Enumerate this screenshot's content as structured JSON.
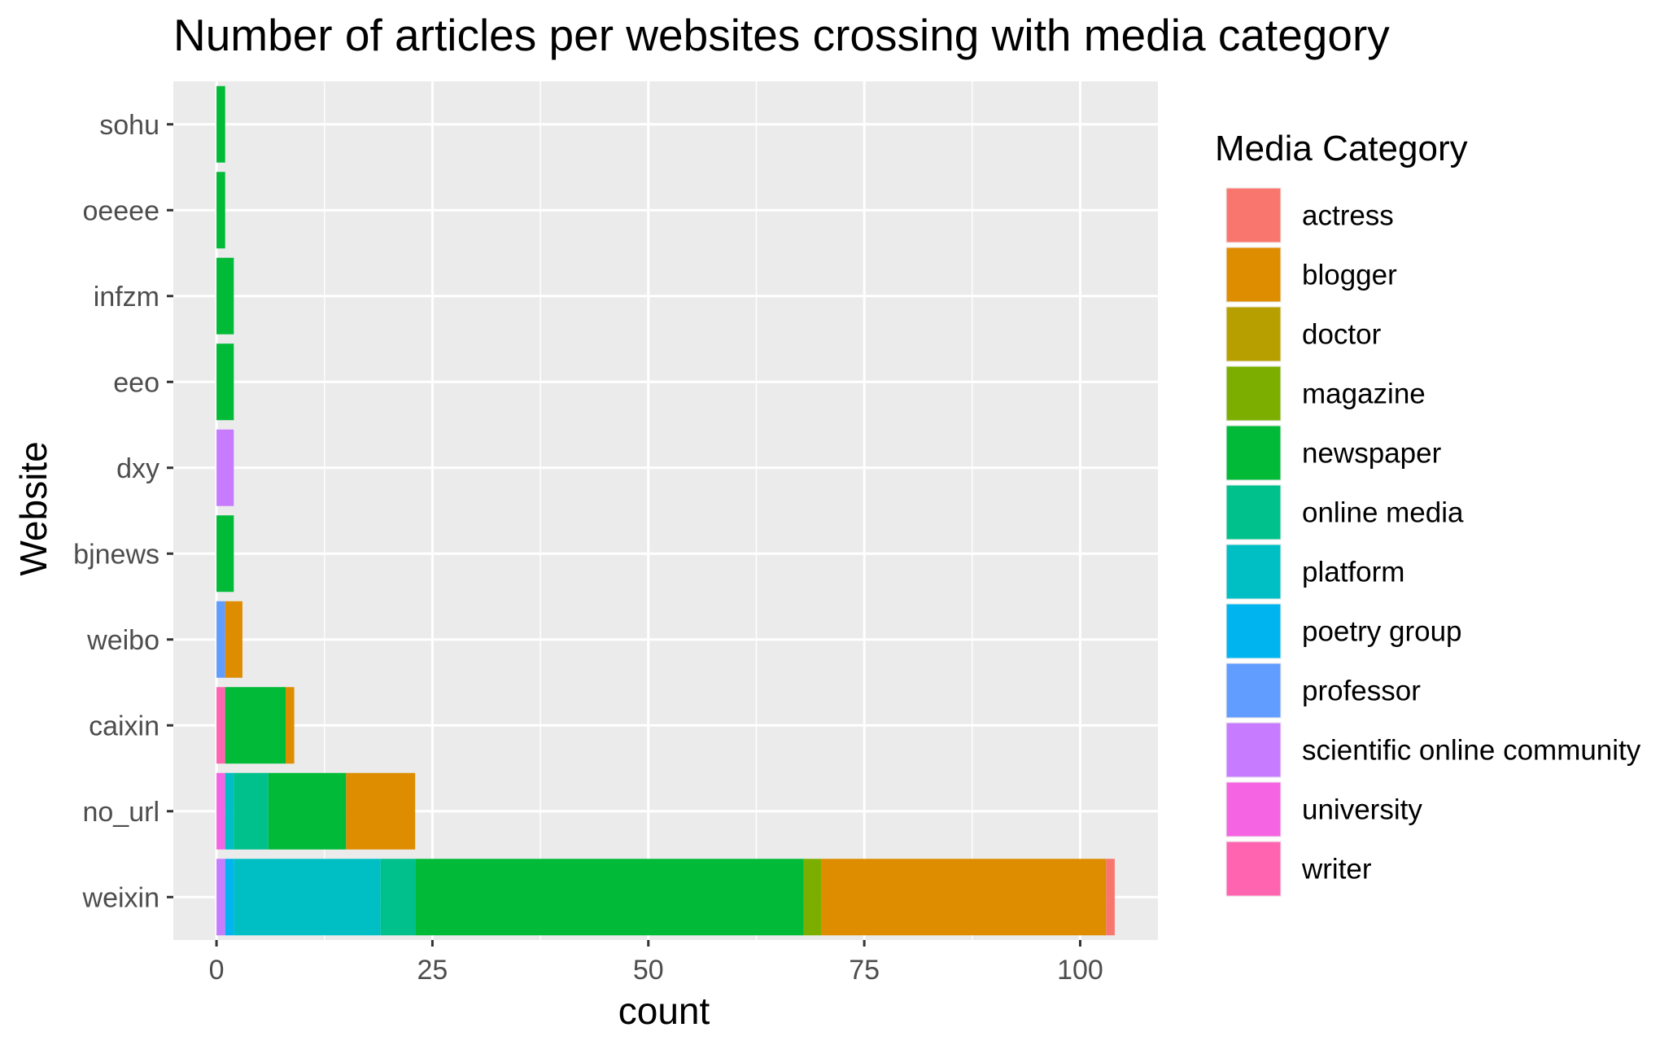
{
  "chart_data": {
    "type": "bar",
    "orientation": "horizontal",
    "stacked": true,
    "title": "Number of articles per websites crossing with media category",
    "xlabel": "count",
    "ylabel": "Website",
    "xlim": [
      -5,
      109
    ],
    "xticks": [
      0,
      25,
      50,
      75,
      100
    ],
    "grid": true,
    "legend_position": "right",
    "legend_title": "Media Category",
    "categories": [
      "sohu",
      "oeeee",
      "infzm",
      "eeo",
      "dxy",
      "bjnews",
      "weibo",
      "caixin",
      "no_url",
      "weixin"
    ],
    "series": [
      {
        "name": "actress",
        "color": "#F8766D",
        "values": [
          0,
          0,
          0,
          0,
          0,
          0,
          0,
          0,
          0,
          1
        ]
      },
      {
        "name": "blogger",
        "color": "#DE8C00",
        "values": [
          0,
          0,
          0,
          0,
          0,
          0,
          2,
          1,
          8,
          33
        ]
      },
      {
        "name": "doctor",
        "color": "#B79F00",
        "values": [
          0,
          0,
          0,
          0,
          0,
          0,
          0,
          0,
          0,
          0
        ]
      },
      {
        "name": "magazine",
        "color": "#7CAE00",
        "values": [
          0,
          0,
          0,
          0,
          0,
          0,
          0,
          0,
          0,
          2
        ]
      },
      {
        "name": "newspaper",
        "color": "#00BA38",
        "values": [
          1,
          1,
          2,
          2,
          0,
          2,
          0,
          7,
          9,
          45
        ]
      },
      {
        "name": "online media",
        "color": "#00C08B",
        "values": [
          0,
          0,
          0,
          0,
          0,
          0,
          0,
          0,
          4,
          4
        ]
      },
      {
        "name": "platform",
        "color": "#00BFC4",
        "values": [
          0,
          0,
          0,
          0,
          0,
          0,
          0,
          0,
          1,
          17
        ]
      },
      {
        "name": "poetry group",
        "color": "#00B4F0",
        "values": [
          0,
          0,
          0,
          0,
          0,
          0,
          0,
          0,
          0,
          1
        ]
      },
      {
        "name": "professor",
        "color": "#619CFF",
        "values": [
          0,
          0,
          0,
          0,
          0,
          0,
          1,
          0,
          0,
          0
        ]
      },
      {
        "name": "scientific online community",
        "color": "#C77CFF",
        "values": [
          0,
          0,
          0,
          0,
          2,
          0,
          0,
          0,
          0,
          1
        ]
      },
      {
        "name": "university",
        "color": "#F564E3",
        "values": [
          0,
          0,
          0,
          0,
          0,
          0,
          0,
          0,
          1,
          0
        ]
      },
      {
        "name": "writer",
        "color": "#FF64B0",
        "values": [
          0,
          0,
          0,
          0,
          0,
          0,
          0,
          1,
          0,
          0
        ]
      }
    ]
  }
}
